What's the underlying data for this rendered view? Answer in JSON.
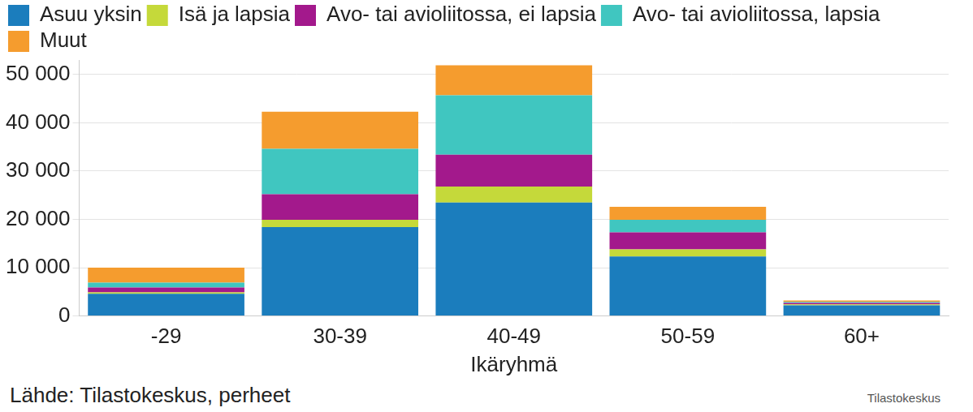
{
  "chart_data": {
    "type": "bar",
    "stacked": true,
    "legend": "top-left",
    "grid": true,
    "x_label": "Ikäryhmä",
    "source": "Lähde: Tilastokeskus, perheet",
    "logo": "Tilastokeskus",
    "categories": [
      "-29",
      "30-39",
      "40-49",
      "50-59",
      "60+"
    ],
    "series": [
      {
        "name": "Asuu yksin",
        "color": "#1b7dbd",
        "values": [
          4600,
          18400,
          23500,
          12300,
          2200
        ]
      },
      {
        "name": "Isä ja lapsia",
        "color": "#c5d93a",
        "values": [
          300,
          1500,
          3300,
          1500,
          200
        ]
      },
      {
        "name": "Avo- tai avioliitossa, ei lapsia",
        "color": "#a3198c",
        "values": [
          1000,
          5300,
          6600,
          3500,
          300
        ]
      },
      {
        "name": "Avo- tai avioliitossa, lapsia",
        "color": "#40c6c0",
        "values": [
          1000,
          9400,
          12300,
          2600,
          200
        ]
      },
      {
        "name": "Muut",
        "color": "#f59c2e",
        "values": [
          3100,
          7700,
          6200,
          2700,
          300
        ]
      }
    ],
    "ylim": [
      0,
      53000
    ],
    "yticks": [
      0,
      {
        "value": 10000,
        "label": "10 000"
      },
      {
        "value": 20000,
        "label": "20 000"
      },
      {
        "value": 30000,
        "label": "30 000"
      },
      {
        "value": 40000,
        "label": "40 000"
      },
      {
        "value": 50000,
        "label": "50 000"
      }
    ]
  }
}
